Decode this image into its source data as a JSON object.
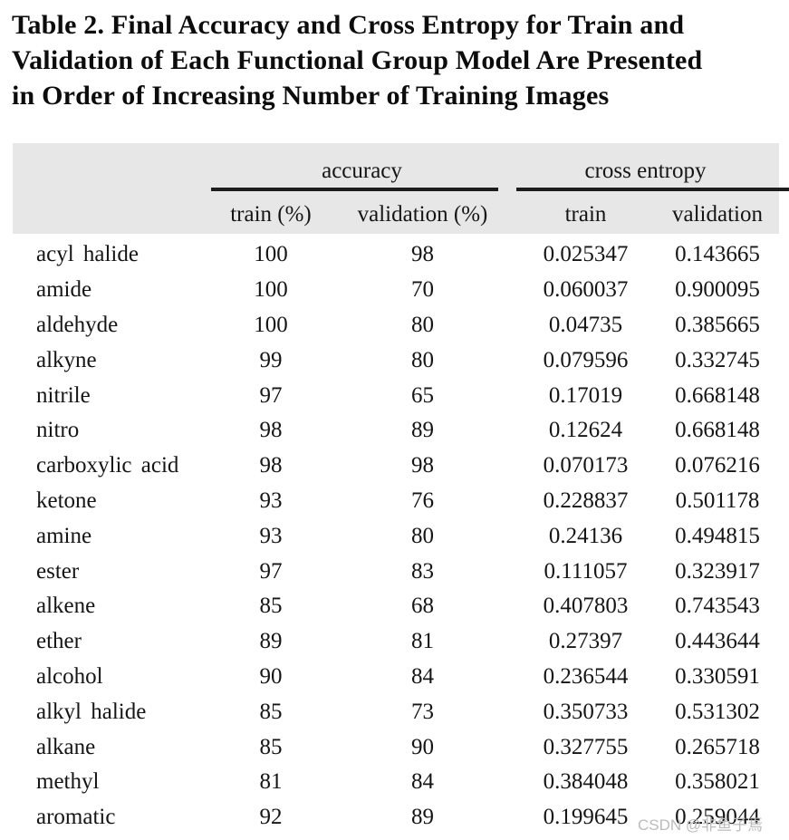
{
  "title": {
    "lines": [
      "Table 2. Final Accuracy and Cross Entropy for Train and",
      "Validation of Each Functional Group Model Are Presented",
      "in Order of Increasing Number of Training Images"
    ]
  },
  "table": {
    "group_headers": {
      "accuracy": "accuracy",
      "cross_entropy": "cross entropy"
    },
    "sub_headers": [
      "train (%)",
      "validation (%)",
      "train",
      "validation"
    ],
    "rows": [
      {
        "group": "acyl halide",
        "acc_train": "100",
        "acc_val": "98",
        "ce_train": "0.025347",
        "ce_val": "0.143665"
      },
      {
        "group": "amide",
        "acc_train": "100",
        "acc_val": "70",
        "ce_train": "0.060037",
        "ce_val": "0.900095"
      },
      {
        "group": "aldehyde",
        "acc_train": "100",
        "acc_val": "80",
        "ce_train": "0.04735",
        "ce_val": "0.385665"
      },
      {
        "group": "alkyne",
        "acc_train": "99",
        "acc_val": "80",
        "ce_train": "0.079596",
        "ce_val": "0.332745"
      },
      {
        "group": "nitrile",
        "acc_train": "97",
        "acc_val": "65",
        "ce_train": "0.17019",
        "ce_val": "0.668148"
      },
      {
        "group": "nitro",
        "acc_train": "98",
        "acc_val": "89",
        "ce_train": "0.12624",
        "ce_val": "0.668148"
      },
      {
        "group": "carboxylic acid",
        "acc_train": "98",
        "acc_val": "98",
        "ce_train": "0.070173",
        "ce_val": "0.076216"
      },
      {
        "group": "ketone",
        "acc_train": "93",
        "acc_val": "76",
        "ce_train": "0.228837",
        "ce_val": "0.501178"
      },
      {
        "group": "amine",
        "acc_train": "93",
        "acc_val": "80",
        "ce_train": "0.24136",
        "ce_val": "0.494815"
      },
      {
        "group": "ester",
        "acc_train": "97",
        "acc_val": "83",
        "ce_train": "0.111057",
        "ce_val": "0.323917"
      },
      {
        "group": "alkene",
        "acc_train": "85",
        "acc_val": "68",
        "ce_train": "0.407803",
        "ce_val": "0.743543"
      },
      {
        "group": "ether",
        "acc_train": "89",
        "acc_val": "81",
        "ce_train": "0.27397",
        "ce_val": "0.443644"
      },
      {
        "group": "alcohol",
        "acc_train": "90",
        "acc_val": "84",
        "ce_train": "0.236544",
        "ce_val": "0.330591"
      },
      {
        "group": "alkyl halide",
        "acc_train": "85",
        "acc_val": "73",
        "ce_train": "0.350733",
        "ce_val": "0.531302"
      },
      {
        "group": "alkane",
        "acc_train": "85",
        "acc_val": "90",
        "ce_train": "0.327755",
        "ce_val": "0.265718"
      },
      {
        "group": "methyl",
        "acc_train": "81",
        "acc_val": "84",
        "ce_train": "0.384048",
        "ce_val": "0.358021"
      },
      {
        "group": "aromatic",
        "acc_train": "92",
        "acc_val": "89",
        "ce_train": "0.199645",
        "ce_val": "0.259044"
      }
    ]
  },
  "watermark": "CSDN @非鱼子焉",
  "colors": {
    "header_band": "#e7e7e7",
    "rule": "#1d1d1d",
    "text": "#151515",
    "watermark": "#bcbcbc"
  }
}
